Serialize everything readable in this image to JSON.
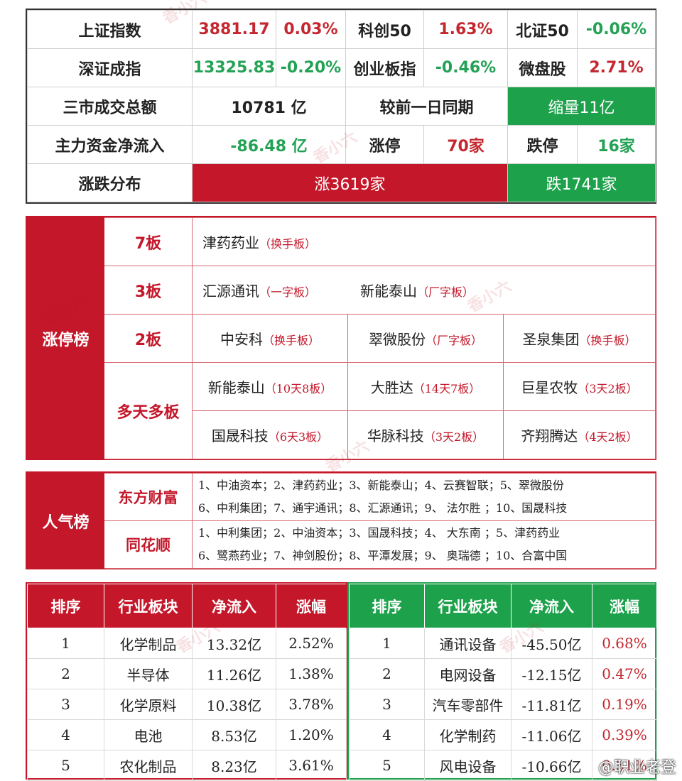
{
  "market": {
    "rows": [
      [
        {
          "text": "上证指数",
          "cls": "lbl"
        },
        {
          "text": "3881.17",
          "cls": "red"
        },
        {
          "text": "0.03%",
          "cls": "red"
        },
        {
          "text": "科创50",
          "cls": "lbl"
        },
        {
          "text": "1.63%",
          "cls": "red"
        },
        {
          "text": "北证50",
          "cls": "lbl"
        },
        {
          "text": "-0.06%",
          "cls": "grn"
        }
      ],
      [
        {
          "text": "深证成指",
          "cls": "lbl"
        },
        {
          "text": "13325.83",
          "cls": "grn"
        },
        {
          "text": "-0.20%",
          "cls": "grn"
        },
        {
          "text": "创业板指",
          "cls": "lbl"
        },
        {
          "text": "-0.46%",
          "cls": "grn"
        },
        {
          "text": "微盘股",
          "cls": "lbl"
        },
        {
          "text": "2.71%",
          "cls": "red"
        }
      ]
    ],
    "turnover_label": "三市成交总额",
    "turnover_value": "10781 亿",
    "compare_label": "较前一日同期",
    "compare_value": "缩量11亿",
    "mainflow_label": "主力资金净流入",
    "mainflow_value": "-86.48 亿",
    "limitup_label": "涨停",
    "limitup_value": "70家",
    "limitdown_label": "跌停",
    "limitdown_value": "16家",
    "dist_label": "涨跌分布",
    "up_count": "涨3619家",
    "down_count": "跌1741家",
    "colors": {
      "up": "#c4172a",
      "down": "#1da14b"
    }
  },
  "limit_board": {
    "title": "涨停榜",
    "rows": [
      {
        "label": "7板",
        "items": [
          {
            "name": "津药药业",
            "tag": "（换手板）"
          }
        ]
      },
      {
        "label": "3板",
        "items": [
          {
            "name": "汇源通讯",
            "tag": "（一字板）"
          },
          {
            "name": "新能泰山",
            "tag": "（厂字板）"
          }
        ]
      },
      {
        "label": "2板",
        "items": [
          {
            "name": "中安科",
            "tag": "（换手板）"
          },
          {
            "name": "翠微股份",
            "tag": "（厂字板）"
          },
          {
            "name": "圣泉集团",
            "tag": "（换手板）"
          }
        ]
      }
    ],
    "multi_label": "多天多板",
    "multi_rows": [
      [
        {
          "name": "新能泰山",
          "tag": "（10天8板）"
        },
        {
          "name": "大胜达",
          "tag": "（14天7板）"
        },
        {
          "name": "巨星农牧",
          "tag": "（3天2板）"
        }
      ],
      [
        {
          "name": "国晟科技",
          "tag": "（6天3板）"
        },
        {
          "name": "华脉科技",
          "tag": "（3天2板）"
        },
        {
          "name": "齐翔腾达",
          "tag": "（4天2板）"
        }
      ]
    ]
  },
  "popularity": {
    "title": "人气榜",
    "sources": [
      {
        "name": "东方财富",
        "lines": [
          "1、中油资本；2、津药药业；3、新能泰山；4、云赛智联；5、翠微股份",
          "6、中利集团；7、通宇通讯；8、汇源通讯；9、 法尔胜 ；10、国晟科技"
        ]
      },
      {
        "name": "同花顺",
        "lines": [
          "1、中利集团；2、中油资本；3、国晟科技；4、 大东南 ；5、津药药业",
          "6、鹭燕药业；7、神剑股份；8、平潭发展；9、 奥瑞德 ；10、合富中国"
        ]
      }
    ]
  },
  "sectors": {
    "headers": [
      "排序",
      "行业板块",
      "净流入",
      "涨幅"
    ],
    "inflow": [
      [
        "1",
        "化学制品",
        "13.32亿",
        "2.52%"
      ],
      [
        "2",
        "半导体",
        "11.26亿",
        "1.38%"
      ],
      [
        "3",
        "化学原料",
        "10.38亿",
        "3.78%"
      ],
      [
        "4",
        "电池",
        "8.53亿",
        "1.20%"
      ],
      [
        "5",
        "农化制品",
        "8.23亿",
        "3.61%"
      ]
    ],
    "outflow": [
      [
        "1",
        "通讯设备",
        "-45.50亿",
        "0.68%"
      ],
      [
        "2",
        "电网设备",
        "-12.15亿",
        "0.47%"
      ],
      [
        "3",
        "汽车零部件",
        "-11.81亿",
        "0.19%"
      ],
      [
        "4",
        "化学制药",
        "-11.06亿",
        "0.39%"
      ],
      [
        "5",
        "风电设备",
        "-10.66亿",
        "0.31%"
      ]
    ]
  },
  "watermark": "香小六",
  "weibo_mark": "@职业老登"
}
